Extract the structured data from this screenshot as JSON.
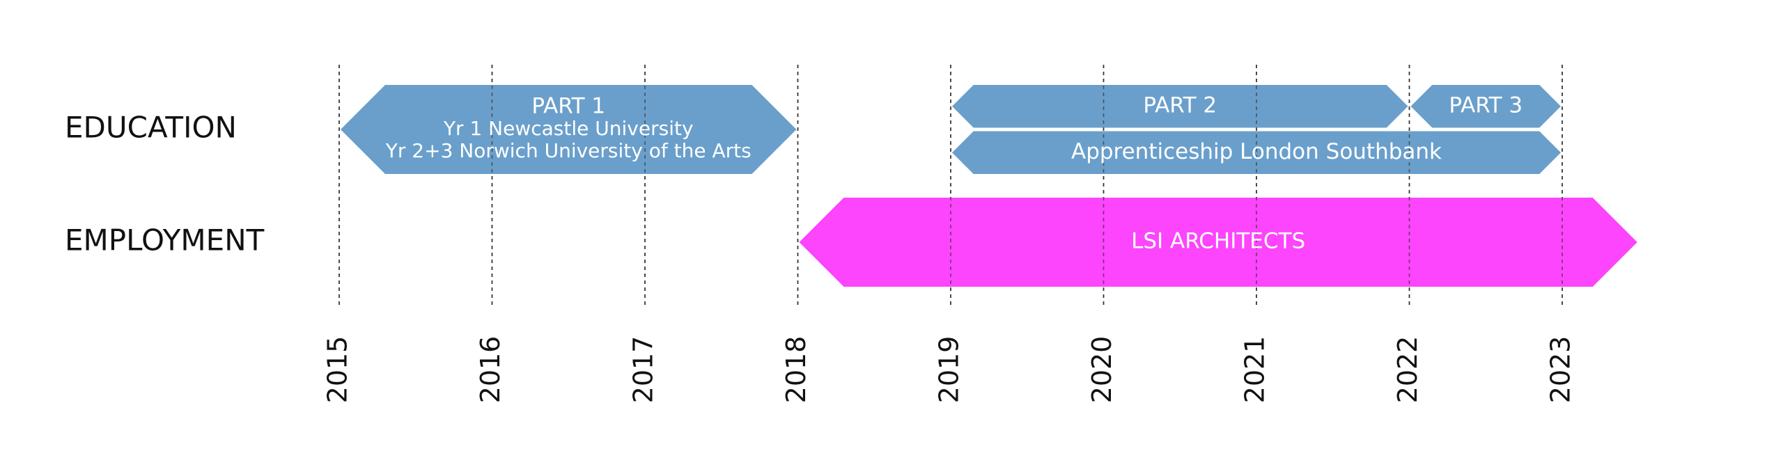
{
  "chart_data": {
    "type": "timeline",
    "xlim": [
      2015,
      2023.5
    ],
    "xticks": [
      2015,
      2016,
      2017,
      2018,
      2019,
      2020,
      2021,
      2022,
      2023
    ],
    "grid": true,
    "rows": [
      {
        "label": "EDUCATION",
        "color": "#6a9fcb",
        "bars": [
          {
            "start": 2015,
            "end": 2018,
            "labels": [
              "PART 1",
              "Yr 1 Newcastle University",
              "Yr 2+3 Norwich University of the Arts"
            ]
          },
          {
            "start": 2019,
            "end": 2022,
            "labels": [
              "PART 2"
            ]
          },
          {
            "start": 2022,
            "end": 2023,
            "labels": [
              "PART 3"
            ]
          },
          {
            "start": 2019,
            "end": 2023,
            "labels": [
              "Apprenticeship London Southbank"
            ]
          }
        ]
      },
      {
        "label": "EMPLOYMENT",
        "color": "#fc45fc",
        "bars": [
          {
            "start": 2018,
            "end": 2023.5,
            "labels": [
              "LSI ARCHITECTS"
            ]
          }
        ]
      }
    ]
  }
}
